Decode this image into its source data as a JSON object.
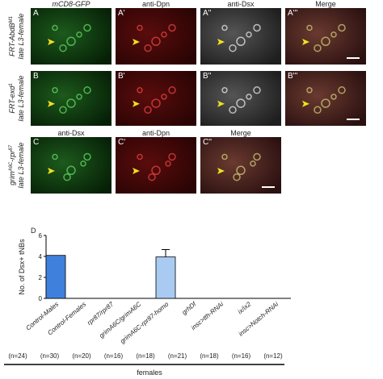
{
  "figure": {
    "rows": [
      {
        "headers": [
          "mCD8-GFP",
          "anti-Dpn",
          "anti-Dsx",
          "Merge"
        ],
        "labels": [
          "A",
          "A'",
          "A''",
          "A'''"
        ],
        "side": {
          "parts": [
            [
              "FRT-AbdB",
              false
            ],
            [
              "M1",
              true
            ]
          ],
          "line2": "late L3-female"
        }
      },
      {
        "labels": [
          "B",
          "B'",
          "B''",
          "B'''"
        ],
        "side": {
          "parts": [
            [
              "FRT-exd",
              false
            ],
            [
              "1",
              true
            ]
          ],
          "line2": "late L3-female"
        }
      },
      {
        "headers": [
          "anti-Dsx",
          "anti-Dpn",
          "Merge"
        ],
        "labels": [
          "C",
          "C'",
          "C''"
        ],
        "side": {
          "parts": [
            [
              "grim",
              false
            ],
            [
              "A6C",
              true
            ],
            [
              "-rpr",
              false
            ],
            [
              "87",
              true
            ]
          ],
          "line2": "late L3-female"
        }
      }
    ],
    "chart_label": "D",
    "n_labels": [
      "(n=24)",
      "(n=30)",
      "(n=20)",
      "(n=16)",
      "(n=18)",
      "(n=21)",
      "(n=18)",
      "(n=16)",
      "(n=12)"
    ],
    "group_label": "females"
  },
  "chart_data": {
    "type": "bar",
    "y_label": "No. of Dsx+ tNBs",
    "categories": [
      "Control-Males",
      "Control-Females",
      "rpr87/rpr87",
      "grimA6C/grimA6C",
      "grimA6C-rpr87-homo",
      "grhDf",
      "insc>tth-RNAi",
      "ix/ix2",
      "insc>Notch-RNAi"
    ],
    "values": [
      4.1,
      0,
      0,
      0,
      3.95,
      0,
      0,
      0,
      0
    ],
    "errors": [
      null,
      null,
      null,
      null,
      0.7,
      null,
      null,
      null,
      null
    ],
    "colors": [
      "#3f80dc",
      "#3f80dc",
      "#3f80dc",
      "#3f80dc",
      "#a9cbf2",
      "#a9cbf2",
      "#a9cbf2",
      "#a9cbf2",
      "#a9cbf2"
    ],
    "ylim": [
      0,
      6
    ],
    "yticks": [
      0,
      2,
      4,
      6
    ]
  }
}
